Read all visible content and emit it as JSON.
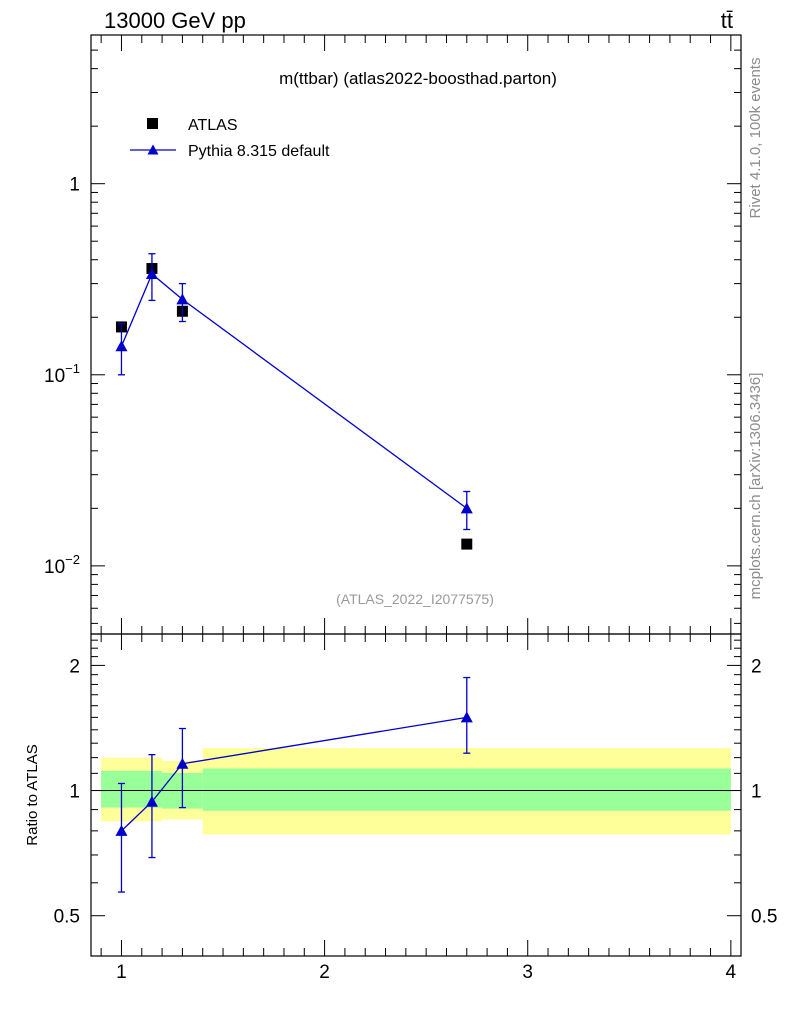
{
  "header": {
    "left": "13000 GeV pp",
    "right": "tt̄"
  },
  "side_labels": {
    "rivet": "Rivet 4.1.0,  100k events",
    "mcplots": "mcplots.cern.ch [arXiv:1306.3436]"
  },
  "colors": {
    "mc": "#0000cc",
    "data": "#000000",
    "band_outer": "#ffff99",
    "band_inner": "#99ff99"
  },
  "chart_data": [
    {
      "type": "scatter",
      "title": "m(ttbar) (atlas2022-boosthad.parton)",
      "watermark": "(ATLAS_2022_I2077575)",
      "yscale": "log",
      "xlim": [
        0.85,
        4.05
      ],
      "ylim": [
        0.0044,
        6.0
      ],
      "ytick_labels": [
        {
          "value": 1,
          "base": "1",
          "exp": ""
        },
        {
          "value": 0.1,
          "base": "10",
          "exp": "−1"
        },
        {
          "value": 0.01,
          "base": "10",
          "exp": "−2"
        }
      ],
      "legend": {
        "position": "top-left",
        "data_label": "ATLAS",
        "mc_label": "Pythia 8.315 default"
      },
      "series": [
        {
          "name": "ATLAS",
          "marker": "square",
          "x": [
            1.0,
            1.15,
            1.3,
            2.7
          ],
          "y": [
            0.178,
            0.36,
            0.215,
            0.013
          ]
        },
        {
          "name": "Pythia 8.315 default",
          "marker": "triangle",
          "x": [
            1.0,
            1.15,
            1.3,
            2.7
          ],
          "y": [
            0.141,
            0.337,
            0.248,
            0.02
          ],
          "yerr_low": [
            0.1,
            0.245,
            0.19,
            0.0155
          ],
          "yerr_high": [
            0.185,
            0.43,
            0.3,
            0.0245
          ]
        }
      ]
    },
    {
      "type": "line",
      "ylabel": "Ratio to ATLAS",
      "yscale": "log",
      "xlim": [
        0.85,
        4.05
      ],
      "ylim": [
        0.4,
        2.38
      ],
      "xticks": [
        1,
        2,
        3,
        4
      ],
      "xtick_labels": [
        "1",
        "2",
        "3",
        "4"
      ],
      "yticks": [
        0.5,
        1,
        2
      ],
      "ytick_labels": [
        "0.5",
        "1",
        "2"
      ],
      "bands": [
        {
          "x0": 0.9,
          "x1": 1.2,
          "outer": [
            0.843,
            1.2
          ],
          "inner": [
            0.91,
            1.115
          ]
        },
        {
          "x0": 1.2,
          "x1": 1.4,
          "outer": [
            0.852,
            1.178
          ],
          "inner": [
            0.905,
            1.102
          ]
        },
        {
          "x0": 1.4,
          "x1": 4.0,
          "outer": [
            0.784,
            1.265
          ],
          "inner": [
            0.894,
            1.13
          ]
        }
      ],
      "series": [
        {
          "name": "Pythia 8.315 default",
          "x": [
            1.0,
            1.15,
            1.3,
            2.7
          ],
          "y": [
            0.8,
            0.94,
            1.16,
            1.5
          ],
          "yerr_low": [
            0.57,
            0.69,
            0.91,
            1.23
          ],
          "yerr_high": [
            1.04,
            1.22,
            1.41,
            1.87
          ]
        }
      ]
    }
  ]
}
